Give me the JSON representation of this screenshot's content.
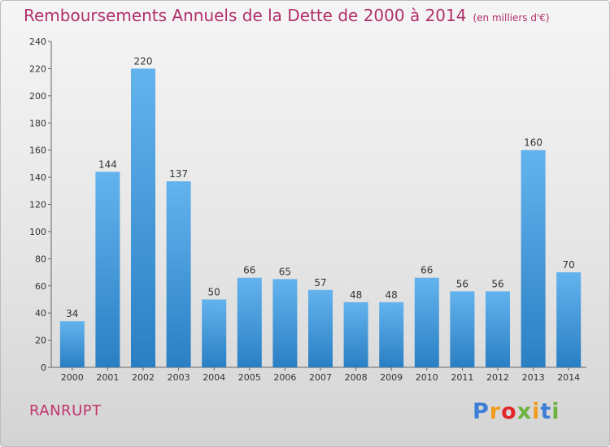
{
  "header": {
    "title": "Remboursements Annuels de la Dette de 2000 à 2014",
    "subtitle": "(en milliers d'€)"
  },
  "footer": {
    "commune": "RANRUPT",
    "logo_text": "Proxiti"
  },
  "colors": {
    "title": "#b0306a",
    "bar_light": "#63b3ee",
    "bar_dark": "#2a7fc3",
    "axis": "#555555"
  },
  "chart_data": {
    "type": "bar",
    "title": "Remboursements Annuels de la Dette de 2000 à 2014",
    "subtitle": "(en milliers d'€)",
    "xlabel": "",
    "ylabel": "",
    "categories": [
      "2000",
      "2001",
      "2002",
      "2003",
      "2004",
      "2005",
      "2006",
      "2007",
      "2008",
      "2009",
      "2010",
      "2011",
      "2012",
      "2013",
      "2014"
    ],
    "values": [
      34,
      144,
      220,
      137,
      50,
      66,
      65,
      57,
      48,
      48,
      66,
      56,
      56,
      160,
      70
    ],
    "ylim": [
      0,
      240
    ],
    "yticks": [
      0,
      20,
      40,
      60,
      80,
      100,
      120,
      140,
      160,
      180,
      200,
      220,
      240
    ],
    "grid": false,
    "data_labels": true
  }
}
